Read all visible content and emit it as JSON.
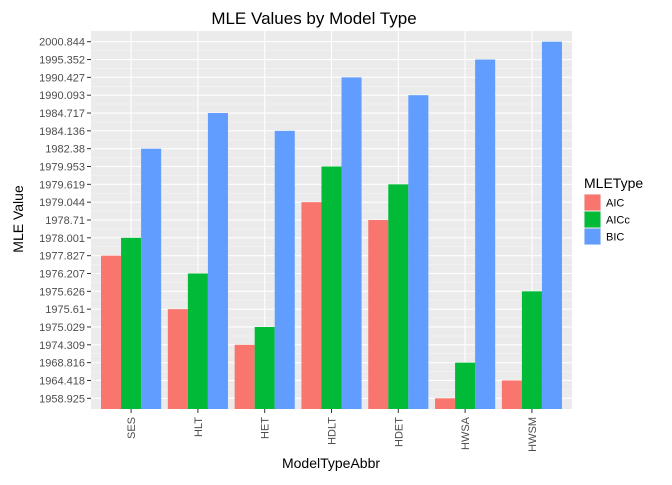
{
  "chart_data": {
    "type": "bar",
    "title": "MLE Values by Model Type",
    "xlabel": "ModelTypeAbbr",
    "ylabel": "MLE Value",
    "categories": [
      "SES",
      "HLT",
      "HET",
      "HDLT",
      "HDET",
      "HWSA",
      "HWSM"
    ],
    "y_scale": "discrete",
    "y_ticks": [
      "1958.925",
      "1964.418",
      "1968.816",
      "1974.309",
      "1975.029",
      "1975.61",
      "1975.626",
      "1976.207",
      "1977.827",
      "1978.001",
      "1978.71",
      "1979.044",
      "1979.619",
      "1979.953",
      "1982.38",
      "1984.136",
      "1984.717",
      "1990.093",
      "1990.427",
      "1995.352",
      "2000.844"
    ],
    "series": [
      {
        "name": "AIC",
        "color": "#F8766D",
        "values": [
          1977.827,
          1975.61,
          1974.309,
          1979.044,
          1978.71,
          1958.925,
          1964.418
        ]
      },
      {
        "name": "AICc",
        "color": "#00BA38",
        "values": [
          1978.001,
          1976.207,
          1975.029,
          1979.953,
          1979.619,
          1968.816,
          1975.626
        ]
      },
      {
        "name": "BIC",
        "color": "#619CFF",
        "values": [
          1982.38,
          1984.717,
          1984.136,
          1990.427,
          1990.093,
          1995.352,
          2000.844
        ]
      }
    ],
    "legend": {
      "title": "MLEType",
      "position": "right"
    },
    "grid": true,
    "panel_background": "#EBEBEB"
  }
}
